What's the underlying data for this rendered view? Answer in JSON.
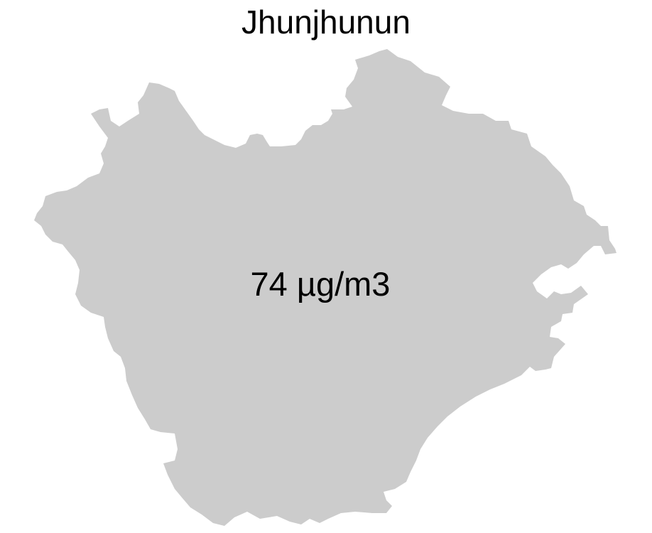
{
  "map": {
    "title": "Jhunjhunun",
    "region_value": "74 µg/m3",
    "region_fill": "#cccccc",
    "background": "#ffffff"
  }
}
